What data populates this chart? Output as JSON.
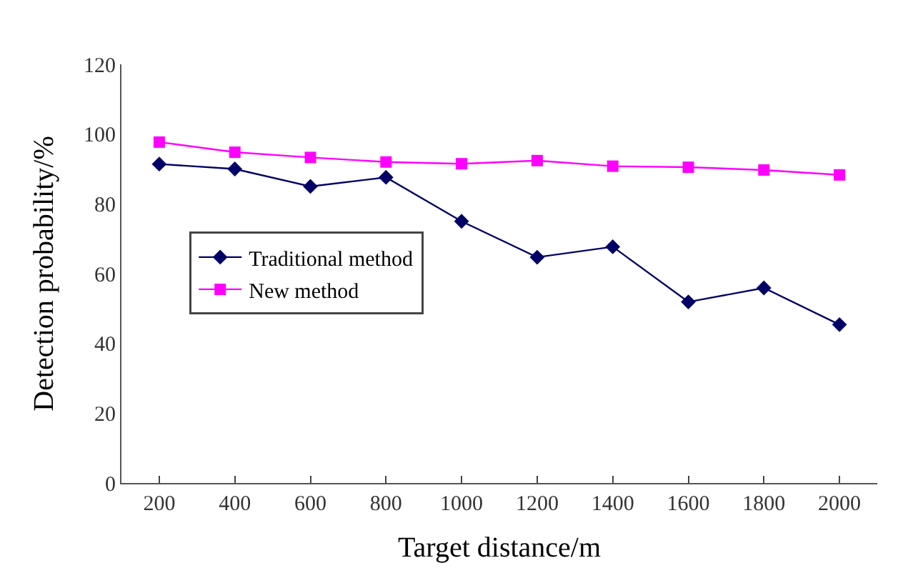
{
  "chart_data": {
    "type": "line",
    "xlabel": "Target distance/m",
    "ylabel": "Detection probability/%",
    "categories": [
      "200",
      "400",
      "600",
      "800",
      "1000",
      "1200",
      "1400",
      "1600",
      "1800",
      "2000"
    ],
    "series": [
      {
        "name": "Traditional method",
        "color": "#000066",
        "marker": "diamond",
        "values": [
          91.4,
          90,
          85,
          87.6,
          75,
          64.7,
          67.7,
          51.9,
          55.9,
          45.4
        ]
      },
      {
        "name": "New method",
        "color": "#ff00ff",
        "marker": "square",
        "values": [
          97.7,
          94.8,
          93.3,
          92,
          91.5,
          92.4,
          90.8,
          90.5,
          89.7,
          88.3
        ]
      }
    ],
    "ylim": [
      0,
      120
    ],
    "yticks": [
      0,
      20,
      40,
      60,
      80,
      100,
      120
    ],
    "legend": "left"
  }
}
